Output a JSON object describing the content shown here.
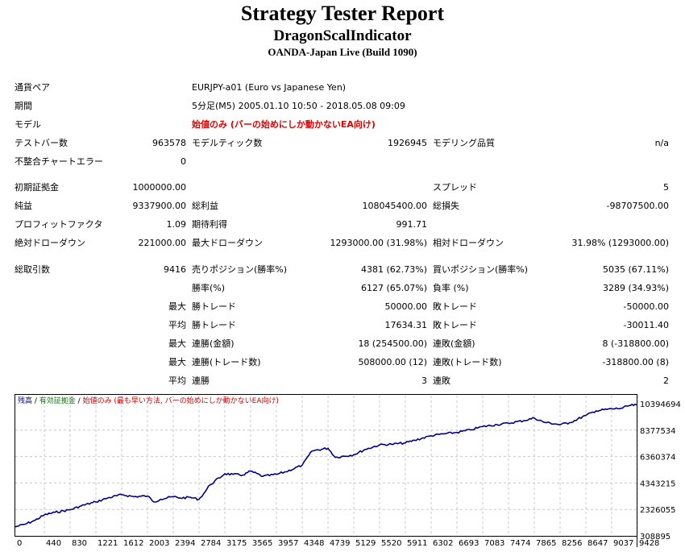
{
  "header": {
    "title": "Strategy Tester Report",
    "ea_name": "DragonScalIndicator",
    "server": "OANDA-Japan Live (Build 1090)"
  },
  "info": {
    "symbol_label": "通貨ペア",
    "symbol_value": "EURJPY-a01 (Euro vs Japanese Yen)",
    "period_label": "期間",
    "period_value": "5分足(M5) 2005.01.10 10:50 - 2018.05.08 09:09",
    "model_label": "モデル",
    "model_value": "始値のみ (バーの始めにしか動かないEA向け)",
    "bars_label": "テストバー数",
    "bars_value": "963578",
    "ticks_label": "モデルティック数",
    "ticks_value": "1926945",
    "quality_label": "モデリング品質",
    "quality_value": "n/a",
    "mismatch_label": "不整合チャートエラー",
    "mismatch_value": "0"
  },
  "stats": {
    "deposit_label": "初期証拠金",
    "deposit_value": "1000000.00",
    "spread_label": "スプレッド",
    "spread_value": "5",
    "net_label": "純益",
    "net_value": "9337900.00",
    "gross_profit_label": "総利益",
    "gross_profit_value": "108045400.00",
    "gross_loss_label": "総損失",
    "gross_loss_value": "-98707500.00",
    "pf_label": "プロフィットファクタ",
    "pf_value": "1.09",
    "expected_label": "期待利得",
    "expected_value": "991.71",
    "abs_dd_label": "絶対ドローダウン",
    "abs_dd_value": "221000.00",
    "max_dd_label": "最大ドローダウン",
    "max_dd_value": "1293000.00 (31.98%)",
    "rel_dd_label": "相対ドローダウン",
    "rel_dd_value": "31.98% (1293000.00)",
    "trades_label": "総取引数",
    "trades_value": "9416",
    "short_label": "売りポジション(勝率%)",
    "short_value": "4381 (62.73%)",
    "long_label": "買いポジション(勝率%)",
    "long_value": "5035 (67.11%)",
    "winrate_label": "勝率(%)",
    "winrate_value": "6127 (65.07%)",
    "lossrate_label": "負率 (%)",
    "lossrate_value": "3289 (34.93%)",
    "max_pre1": "最大",
    "largest_win_label": "勝トレード",
    "largest_win_value": "50000.00",
    "largest_loss_label": "敗トレード",
    "largest_loss_value": "-50000.00",
    "avg_pre1": "平均",
    "avg_win_label": "勝トレード",
    "avg_win_value": "17634.31",
    "avg_loss_label": "敗トレード",
    "avg_loss_value": "-30011.40",
    "max_pre2": "最大",
    "cons_win_amt_label": "連勝(金額)",
    "cons_win_amt_value": "18 (254500.00)",
    "cons_loss_amt_label": "連敗(金額)",
    "cons_loss_amt_value": "8 (-318800.00)",
    "max_pre3": "最大",
    "cons_win_cnt_label": "連勝(トレード数)",
    "cons_win_cnt_value": "508000.00 (12)",
    "cons_loss_cnt_label": "連敗(トレード数)",
    "cons_loss_cnt_value": "-318800.00 (8)",
    "avg_pre2": "平均",
    "avg_cons_win_label": "連勝",
    "avg_cons_win_value": "3",
    "avg_cons_loss_label": "連敗",
    "avg_cons_loss_value": "2"
  },
  "colors": {
    "balance": "#00008b",
    "legend_green": "#008000",
    "legend_red": "#cc0000",
    "grid": "#c8c8c8"
  },
  "chart_data": {
    "type": "line",
    "legend": {
      "balance": "残高",
      "sep1": " / ",
      "equity": "有効証拠金",
      "sep2": " / ",
      "model": "始値のみ (最も早い方法, バーの始めにしか動かないEA向け)"
    },
    "x_ticks": [
      "0",
      "440",
      "830",
      "1221",
      "1612",
      "2003",
      "2394",
      "2784",
      "3175",
      "3565",
      "3957",
      "4348",
      "4739",
      "5129",
      "5520",
      "5911",
      "6302",
      "6693",
      "7083",
      "7474",
      "7865",
      "8256",
      "8647",
      "9037",
      "9428"
    ],
    "y_ticks": [
      "10394694",
      "8377534",
      "6360374",
      "4343215",
      "2326055",
      "308895"
    ],
    "xlim": [
      0,
      9416
    ],
    "ylim": [
      308895,
      10394694
    ],
    "series": [
      {
        "x": [
          0,
          150,
          300,
          440,
          600,
          830,
          1000,
          1221,
          1400,
          1612,
          1800,
          2003,
          2100,
          2200,
          2394,
          2500,
          2650,
          2784,
          2850,
          2950,
          3175,
          3300,
          3450,
          3565,
          3750,
          3957,
          4100,
          4348,
          4500,
          4739,
          4850,
          5129,
          5300,
          5520,
          5700,
          5911,
          6050,
          6302,
          6500,
          6693,
          6900,
          7083,
          7300,
          7474,
          7700,
          7865,
          8000,
          8256,
          8400,
          8647,
          8800,
          9037,
          9200,
          9300,
          9416
        ],
        "y": [
          1000000,
          1200000,
          1500000,
          1900000,
          2100000,
          2300000,
          2600000,
          2900000,
          3200000,
          3450000,
          3300000,
          3350000,
          2900000,
          3100000,
          3300000,
          3200000,
          3250000,
          3100000,
          3500000,
          4200000,
          5050000,
          5000000,
          4950000,
          5250000,
          4850000,
          5000000,
          5200000,
          5700000,
          6800000,
          7000000,
          6300000,
          6500000,
          6900000,
          7250000,
          7300000,
          7400000,
          7600000,
          7950000,
          8100000,
          8200000,
          8400000,
          8650000,
          8800000,
          8900000,
          9100000,
          9300000,
          9000000,
          8800000,
          8950000,
          9500000,
          9850000,
          10000000,
          10050000,
          10250000,
          10300000
        ]
      }
    ]
  }
}
